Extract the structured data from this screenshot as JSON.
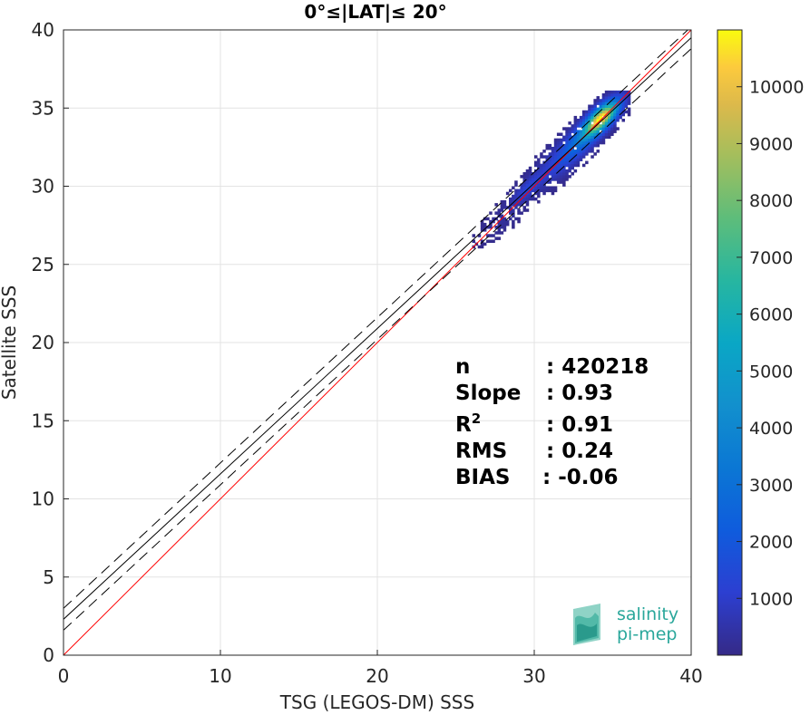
{
  "chart_data": {
    "type": "heatmap",
    "title": "0°≤|LAT|≤ 20°",
    "xlabel": "TSG (LEGOS-DM) SSS",
    "ylabel": "Satellite SSS",
    "xlim": [
      0,
      40
    ],
    "ylim": [
      0,
      40
    ],
    "xticks": [
      "0",
      "10",
      "20",
      "30",
      "40"
    ],
    "yticks": [
      "0",
      "5",
      "10",
      "15",
      "20",
      "25",
      "30",
      "35",
      "40"
    ],
    "grid": true,
    "colorbar": {
      "colormap": "parula",
      "range": [
        0,
        11000
      ],
      "ticks": [
        "1000",
        "2000",
        "3000",
        "4000",
        "5000",
        "6000",
        "7000",
        "8000",
        "9000",
        "10000"
      ]
    },
    "density_clusters": [
      {
        "x": 34.2,
        "y": 34.3,
        "sx": 0.9,
        "sy": 0.9,
        "peak": 10500
      },
      {
        "x": 33.0,
        "y": 33.0,
        "sx": 1.1,
        "sy": 1.1,
        "peak": 2500
      },
      {
        "x": 31.5,
        "y": 31.5,
        "sx": 1.3,
        "sy": 1.3,
        "peak": 1200
      },
      {
        "x": 29.5,
        "y": 29.8,
        "sx": 0.8,
        "sy": 0.7,
        "peak": 1100
      },
      {
        "x": 28.0,
        "y": 28.0,
        "sx": 1.5,
        "sy": 1.2,
        "peak": 300
      }
    ],
    "lines": [
      {
        "name": "one-to-one",
        "color": "#ff0000",
        "style": "solid",
        "x": [
          0,
          40
        ],
        "y": [
          0,
          40
        ]
      },
      {
        "name": "regression",
        "color": "#000000",
        "style": "solid",
        "x": [
          0,
          40
        ],
        "y": [
          2.3,
          39.5
        ]
      },
      {
        "name": "upper-bound",
        "color": "#000000",
        "style": "dashed",
        "x": [
          0,
          40
        ],
        "y": [
          3.0,
          40.2
        ]
      },
      {
        "name": "lower-bound",
        "color": "#000000",
        "style": "dashed",
        "x": [
          0,
          40
        ],
        "y": [
          1.6,
          38.8
        ]
      }
    ],
    "stats": [
      {
        "label": "n",
        "value": ": 420218"
      },
      {
        "label": "Slope",
        "value": ": 0.93"
      },
      {
        "label": "R",
        "sup": "2",
        "value": ": 0.91"
      },
      {
        "label": "RMS",
        "value": ": 0.24"
      },
      {
        "label": "BIAS",
        "value": ": -0.06"
      }
    ]
  },
  "logo": {
    "line1": "salinity",
    "line2": "pi-mep",
    "color": "#2aa79b"
  }
}
